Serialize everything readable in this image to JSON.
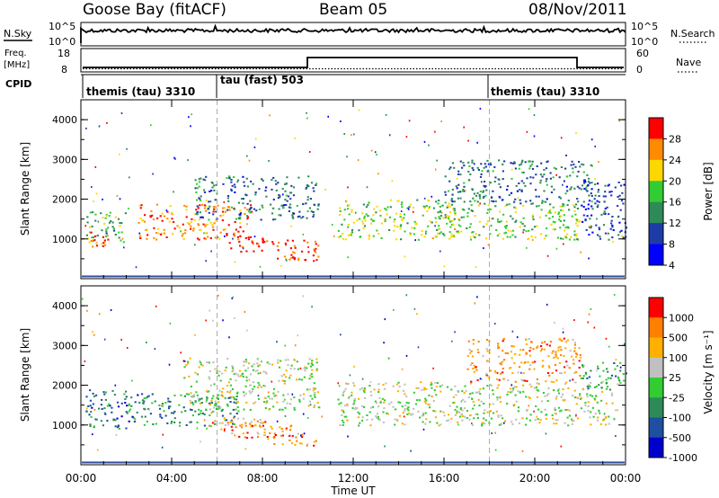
{
  "header": {
    "station": "Goose Bay (fitACF)",
    "beam": "Beam 05",
    "date": "08/Nov/2011"
  },
  "top_panels": {
    "nsky_label": "N.Sky",
    "nsky_ticks": [
      "10^5",
      "10^0"
    ],
    "nsearch_label": "N.Search",
    "freq_label_1": "Freq.",
    "freq_label_2": "[MHz]",
    "freq_ticks": [
      "18",
      "8"
    ],
    "nave_label": "Nave",
    "nave_ticks": [
      "60",
      "0"
    ],
    "cpid_label": "CPID",
    "cpid_segments": [
      {
        "label": "themis (tau) 3310",
        "start_hour": 0
      },
      {
        "label": "tau (fast) 503",
        "start_hour": 6
      },
      {
        "label": "themis (tau) 3310",
        "start_hour": 18
      }
    ]
  },
  "chart_data": [
    {
      "type": "heatmap",
      "quantity": "power",
      "ylabel": "Slant Range [km]",
      "yticks": [
        "1000",
        "2000",
        "3000",
        "4000"
      ],
      "ylim": [
        0,
        4500
      ],
      "xlim_hours": [
        0,
        24
      ],
      "colorbar_label": "Power [dB]",
      "colorbar_ticks": [
        "28",
        "24",
        "20",
        "16",
        "12",
        "8",
        "4"
      ],
      "colorbar_colors": [
        "#0000ff",
        "#1e3ca8",
        "#2e8b57",
        "#32cd32",
        "#ffd700",
        "#ff8c00",
        "#ff0000"
      ],
      "regions": [
        {
          "t0": 0.2,
          "t1": 2.0,
          "r0": 900,
          "r1": 1700,
          "level": 0.45
        },
        {
          "t0": 0.2,
          "t1": 1.2,
          "r0": 800,
          "r1": 1200,
          "level": 0.9
        },
        {
          "t0": 2.5,
          "t1": 7.5,
          "r0": 1000,
          "r1": 1900,
          "level": 0.8
        },
        {
          "t0": 6.5,
          "t1": 8.8,
          "r0": 700,
          "r1": 1100,
          "level": 0.95
        },
        {
          "t0": 8.5,
          "t1": 10.5,
          "r0": 450,
          "r1": 1000,
          "level": 0.9
        },
        {
          "t0": 5.0,
          "t1": 10.5,
          "r0": 1500,
          "r1": 2600,
          "level": 0.3
        },
        {
          "t0": 11.3,
          "t1": 16.5,
          "r0": 1000,
          "r1": 2000,
          "level": 0.55
        },
        {
          "t0": 15.5,
          "t1": 22.0,
          "r0": 1000,
          "r1": 1900,
          "level": 0.5
        },
        {
          "t0": 16.0,
          "t1": 22.5,
          "r0": 1900,
          "r1": 3000,
          "level": 0.3
        },
        {
          "t0": 22.0,
          "t1": 24.0,
          "r0": 1000,
          "r1": 2500,
          "level": 0.2
        }
      ]
    },
    {
      "type": "heatmap",
      "quantity": "velocity",
      "ylabel": "Slant Range [km]",
      "yticks": [
        "1000",
        "2000",
        "3000",
        "4000"
      ],
      "ylim": [
        0,
        4500
      ],
      "xlabel": "Time UT",
      "xticks": [
        "00:00",
        "04:00",
        "08:00",
        "12:00",
        "16:00",
        "20:00",
        "00:00"
      ],
      "xlim_hours": [
        0,
        24
      ],
      "colorbar_label": "Velocity [m s⁻¹]",
      "colorbar_ticks": [
        "1000",
        "500",
        "100",
        "25",
        "-25",
        "-100",
        "-500",
        "-1000"
      ],
      "colorbar_colors": [
        "#0000cd",
        "#1e4fa0",
        "#2e8b57",
        "#32cd32",
        "#c0c0c0",
        "#ffb000",
        "#ff7f00",
        "#ff0000"
      ],
      "regions": [
        {
          "t0": 0.2,
          "t1": 2.5,
          "r0": 900,
          "r1": 1900,
          "level": 0.25
        },
        {
          "t0": 2.5,
          "t1": 7.0,
          "r0": 1000,
          "r1": 1800,
          "level": 0.3
        },
        {
          "t0": 5.5,
          "t1": 8.5,
          "r0": 900,
          "r1": 1200,
          "level": 0.72
        },
        {
          "t0": 6.5,
          "t1": 9.5,
          "r0": 700,
          "r1": 1100,
          "level": 0.78
        },
        {
          "t0": 8.0,
          "t1": 10.5,
          "r0": 500,
          "r1": 800,
          "level": 0.78
        },
        {
          "t0": 4.5,
          "t1": 10.5,
          "r0": 1400,
          "r1": 2700,
          "level": 0.55
        },
        {
          "t0": 11.3,
          "t1": 23.5,
          "r0": 1000,
          "r1": 2100,
          "level": 0.55
        },
        {
          "t0": 17.0,
          "t1": 22.0,
          "r0": 2100,
          "r1": 3200,
          "level": 0.75
        },
        {
          "t0": 22.0,
          "t1": 24.0,
          "r0": 1900,
          "r1": 2600,
          "level": 0.35
        }
      ]
    }
  ]
}
